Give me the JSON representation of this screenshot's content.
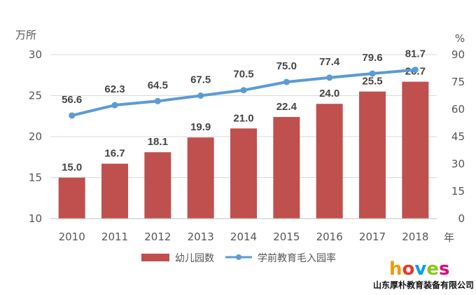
{
  "chart_data": {
    "type": "bar",
    "categories": [
      "2010",
      "2011",
      "2012",
      "2013",
      "2014",
      "2015",
      "2016",
      "2017",
      "2018"
    ],
    "series": [
      {
        "name": "幼儿园数",
        "type": "bar",
        "axis": "left",
        "values": [
          15.0,
          16.7,
          18.1,
          19.9,
          21.0,
          22.4,
          24.0,
          25.5,
          26.7
        ],
        "labels": [
          "15.0",
          "16.7",
          "18.1",
          "19.9",
          "21.0",
          "22.4",
          "24.0",
          "25.5",
          "26.7"
        ],
        "color": "#c0504d"
      },
      {
        "name": "学前教育毛入园率",
        "type": "line",
        "axis": "right",
        "values": [
          56.6,
          62.3,
          64.5,
          67.5,
          70.5,
          75.0,
          77.4,
          79.6,
          81.7
        ],
        "labels": [
          "56.6",
          "62.3",
          "64.5",
          "67.5",
          "70.5",
          "75.0",
          "77.4",
          "79.6",
          "81.7"
        ],
        "color": "#5b9bd5"
      }
    ],
    "y_left": {
      "unit": "万所",
      "ylim": [
        10,
        30
      ],
      "ticks": [
        "10",
        "15",
        "20",
        "25",
        "30"
      ]
    },
    "y_right": {
      "unit": "%",
      "ylim": [
        0,
        90
      ],
      "ticks": [
        "0",
        "15",
        "30",
        "45",
        "60",
        "75",
        "90"
      ]
    },
    "x_unit": "年",
    "grid": true,
    "legend_position": "bottom"
  },
  "watermark": {
    "logo_text": "hoves",
    "company": "山东厚朴教育装备有限公司"
  }
}
